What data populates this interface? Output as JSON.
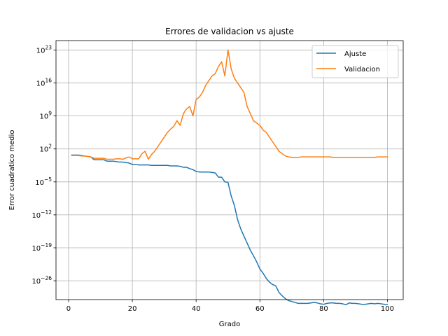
{
  "chart_data": {
    "type": "line",
    "title": "Errores de validacion vs ajuste",
    "xlabel": "Grado",
    "ylabel": "Error cuadratico medio",
    "yscale": "log",
    "xlim": [
      -3.95,
      104.95
    ],
    "ylim_log10": [
      -30,
      25
    ],
    "grid": true,
    "legend_position": "upper-right",
    "x_ticks": [
      0,
      20,
      40,
      60,
      80,
      100
    ],
    "x_tick_labels": [
      "0",
      "20",
      "40",
      "60",
      "80",
      "100"
    ],
    "y_ticks_log10": [
      23,
      16,
      9,
      2,
      -5,
      -12,
      -19,
      -26
    ],
    "y_tick_labels": [
      {
        "base": "10",
        "exp": "23"
      },
      {
        "base": "10",
        "exp": "16"
      },
      {
        "base": "10",
        "exp": "9"
      },
      {
        "base": "10",
        "exp": "2"
      },
      {
        "base": "10",
        "exp": "−5"
      },
      {
        "base": "10",
        "exp": "−12"
      },
      {
        "base": "10",
        "exp": "−19"
      },
      {
        "base": "10",
        "exp": "−26"
      }
    ],
    "x": [
      1,
      2,
      3,
      4,
      5,
      6,
      7,
      8,
      9,
      10,
      11,
      12,
      13,
      14,
      15,
      16,
      17,
      18,
      19,
      20,
      21,
      22,
      23,
      24,
      25,
      26,
      27,
      28,
      29,
      30,
      31,
      32,
      33,
      34,
      35,
      36,
      37,
      38,
      39,
      40,
      41,
      42,
      43,
      44,
      45,
      46,
      47,
      48,
      49,
      50,
      51,
      52,
      53,
      54,
      55,
      56,
      57,
      58,
      59,
      60,
      61,
      62,
      63,
      64,
      65,
      66,
      67,
      68,
      69,
      70,
      71,
      72,
      73,
      74,
      75,
      76,
      77,
      78,
      79,
      80,
      81,
      82,
      83,
      84,
      85,
      86,
      87,
      88,
      89,
      90,
      91,
      92,
      93,
      94,
      95,
      96,
      97,
      98,
      99,
      100
    ],
    "series": [
      {
        "name": "Ajuste",
        "color": "#1f77b4",
        "log10_values": [
          0.7,
          0.7,
          0.7,
          0.6,
          0.5,
          0.4,
          0.3,
          -0.3,
          -0.3,
          -0.3,
          -0.3,
          -0.6,
          -0.6,
          -0.6,
          -0.7,
          -0.8,
          -0.8,
          -0.9,
          -1.0,
          -1.3,
          -1.3,
          -1.4,
          -1.4,
          -1.4,
          -1.4,
          -1.5,
          -1.5,
          -1.5,
          -1.5,
          -1.5,
          -1.5,
          -1.6,
          -1.6,
          -1.6,
          -1.7,
          -1.9,
          -1.9,
          -2.2,
          -2.4,
          -2.8,
          -2.9,
          -2.9,
          -2.9,
          -2.9,
          -3.0,
          -3.1,
          -4.0,
          -4.0,
          -5.0,
          -5.1,
          -8.0,
          -10.0,
          -13.0,
          -15.0,
          -16.5,
          -18.0,
          -19.5,
          -20.7,
          -22.0,
          -23.5,
          -24.4,
          -25.5,
          -26.3,
          -26.8,
          -27.1,
          -28.5,
          -29.2,
          -29.8,
          -30.2,
          -30.4,
          -30.6,
          -30.8,
          -30.8,
          -30.8,
          -30.8,
          -30.7,
          -30.6,
          -30.7,
          -30.9,
          -31.0,
          -30.8,
          -30.7,
          -30.7,
          -30.8,
          -30.8,
          -30.9,
          -31.1,
          -30.7,
          -30.8,
          -30.8,
          -30.9,
          -31.0,
          -31.0,
          -30.9,
          -30.8,
          -30.9,
          -30.8,
          -30.9,
          -31.0,
          -31.0
        ]
      },
      {
        "name": "Validacion",
        "color": "#ff7f0e",
        "log10_values": [
          0.6,
          0.6,
          0.6,
          0.5,
          0.5,
          0.4,
          0.3,
          0.0,
          0.0,
          0.0,
          0.0,
          -0.2,
          -0.2,
          -0.2,
          -0.1,
          -0.1,
          -0.2,
          0.1,
          0.3,
          -0.1,
          -0.1,
          -0.1,
          1.0,
          1.5,
          -0.2,
          0.8,
          1.5,
          2.5,
          3.5,
          4.5,
          5.5,
          6.2,
          6.8,
          8.0,
          7.0,
          9.5,
          10.5,
          11.0,
          9.0,
          12.5,
          13.0,
          14.0,
          15.5,
          16.5,
          17.5,
          18.0,
          19.5,
          20.5,
          17.5,
          23.0,
          19.0,
          17.0,
          16.0,
          15.0,
          14.0,
          11.0,
          9.5,
          8.0,
          7.5,
          7.0,
          6.0,
          5.5,
          4.5,
          3.5,
          2.5,
          1.5,
          1.0,
          0.5,
          0.3,
          0.2,
          0.2,
          0.2,
          0.3,
          0.3,
          0.3,
          0.3,
          0.3,
          0.3,
          0.3,
          0.3,
          0.3,
          0.3,
          0.2,
          0.2,
          0.2,
          0.2,
          0.2,
          0.2,
          0.2,
          0.2,
          0.2,
          0.2,
          0.2,
          0.2,
          0.2,
          0.2,
          0.3,
          0.3,
          0.3,
          0.3
        ]
      }
    ]
  }
}
